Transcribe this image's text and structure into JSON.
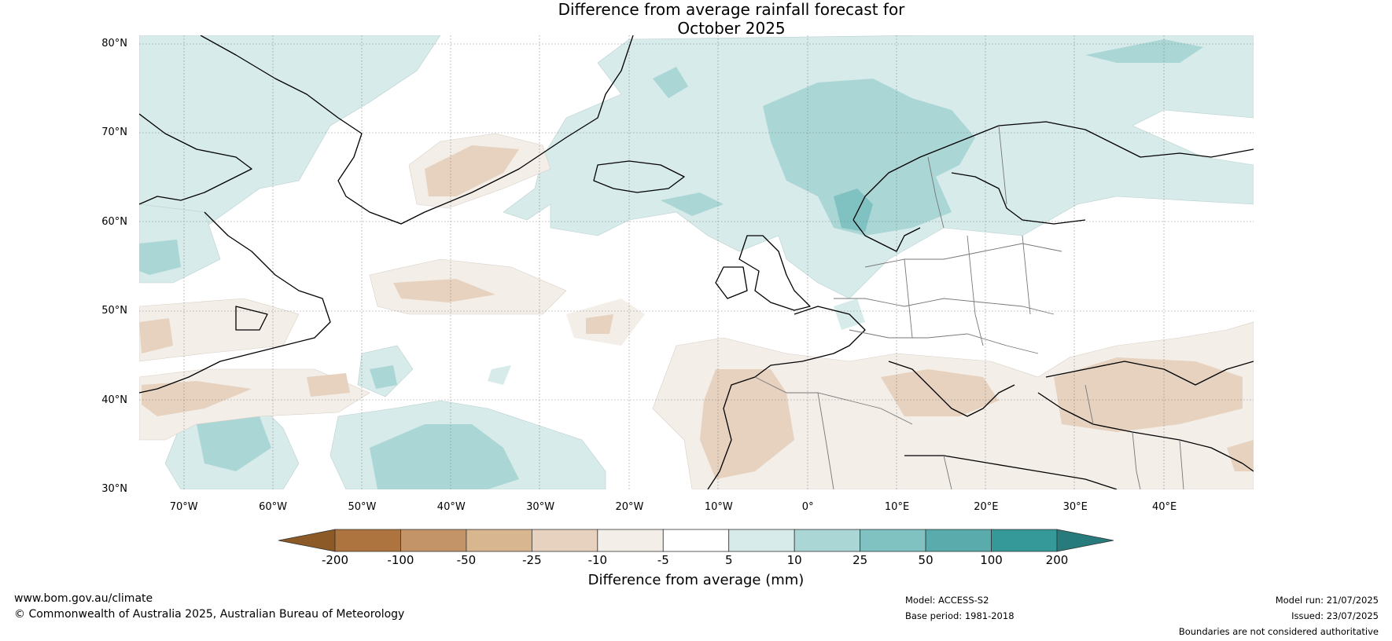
{
  "title": {
    "line1": "Difference from average rainfall forecast for",
    "line2": "October 2025"
  },
  "map": {
    "region": "North Atlantic and Europe",
    "latitudes": [
      {
        "label": "80°N",
        "lat": 80
      },
      {
        "label": "70°N",
        "lat": 70
      },
      {
        "label": "60°N",
        "lat": 60
      },
      {
        "label": "50°N",
        "lat": 50
      },
      {
        "label": "40°N",
        "lat": 40
      },
      {
        "label": "30°N",
        "lat": 30
      }
    ],
    "longitudes": [
      {
        "label": "70°W",
        "lon": -70
      },
      {
        "label": "60°W",
        "lon": -60
      },
      {
        "label": "50°W",
        "lon": -50
      },
      {
        "label": "40°W",
        "lon": -40
      },
      {
        "label": "30°W",
        "lon": -30
      },
      {
        "label": "20°W",
        "lon": -20
      },
      {
        "label": "10°W",
        "lon": -10
      },
      {
        "label": "0°",
        "lon": 0
      },
      {
        "label": "10°E",
        "lon": 10
      },
      {
        "label": "20°E",
        "lon": 20
      },
      {
        "label": "30°E",
        "lon": 30
      },
      {
        "label": "40°E",
        "lon": 40
      }
    ],
    "lon_range": [
      -75,
      50
    ],
    "lat_range": [
      30,
      81
    ]
  },
  "colorbar": {
    "title": "Difference from average (mm)",
    "ticks": [
      "-200",
      "-100",
      "-50",
      "-25",
      "-10",
      "-5",
      "5",
      "10",
      "25",
      "50",
      "100",
      "200"
    ],
    "colors": {
      "below_min": "#8c5a26",
      "bins": [
        "#ad7440",
        "#c39467",
        "#d7b690",
        "#e6d2bf",
        "#f3eee8",
        "#ffffff",
        "#d6ebea",
        "#abd6d6",
        "#80c1c1",
        "#5aacac",
        "#35999a"
      ],
      "above_max": "#277b7c"
    }
  },
  "footer": {
    "website": "www.bom.gov.au/climate",
    "copyright": "© Commonwealth of Australia 2025, Australian Bureau of Meteorology",
    "model": "Model: ACCESS-S2",
    "base_period": "Base period: 1981-2018",
    "model_run": "Model run: 21/07/2025",
    "issued": "Issued: 23/07/2025",
    "disclaimer": "Boundaries are not considered authoritative"
  }
}
